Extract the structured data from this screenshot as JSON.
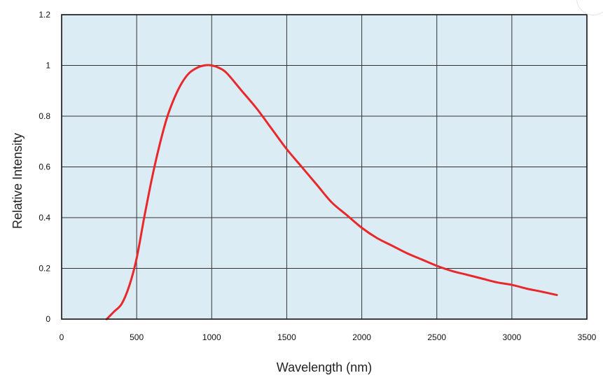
{
  "chart_data": {
    "type": "line",
    "title": "",
    "xlabel": "Wavelength (nm)",
    "ylabel": "Relative Intensity",
    "xlim": [
      0,
      3500
    ],
    "ylim": [
      0,
      1.2
    ],
    "x_ticks": [
      0,
      500,
      1000,
      1500,
      2000,
      2500,
      3000,
      3500
    ],
    "x_tick_labels": [
      "0",
      "500",
      "1000",
      "1500",
      "2000",
      "2500",
      "3000",
      "3500"
    ],
    "y_ticks": [
      0,
      0.2,
      0.4,
      0.6,
      0.8,
      1,
      1.2
    ],
    "y_tick_labels": [
      "0",
      "0.2",
      "0.4",
      "0.6",
      "0.8",
      "1",
      "1.2"
    ],
    "grid": true,
    "colors": {
      "plot_background": "#dcecf5",
      "grid": "#333333",
      "series": "#e8282b"
    },
    "series": [
      {
        "x": [
          300,
          350,
          400,
          450,
          500,
          550,
          600,
          650,
          700,
          750,
          800,
          850,
          900,
          950,
          1000,
          1050,
          1100,
          1200,
          1300,
          1400,
          1500,
          1600,
          1700,
          1800,
          1900,
          2000,
          2100,
          2200,
          2300,
          2400,
          2500,
          2600,
          2700,
          2800,
          2900,
          3000,
          3100,
          3200,
          3300
        ],
        "y": [
          0.0,
          0.03,
          0.06,
          0.13,
          0.24,
          0.4,
          0.55,
          0.68,
          0.79,
          0.87,
          0.93,
          0.97,
          0.99,
          1.0,
          1.0,
          0.99,
          0.97,
          0.9,
          0.83,
          0.75,
          0.67,
          0.6,
          0.53,
          0.46,
          0.41,
          0.36,
          0.32,
          0.29,
          0.26,
          0.235,
          0.21,
          0.19,
          0.175,
          0.16,
          0.145,
          0.135,
          0.12,
          0.108,
          0.095
        ]
      }
    ]
  }
}
